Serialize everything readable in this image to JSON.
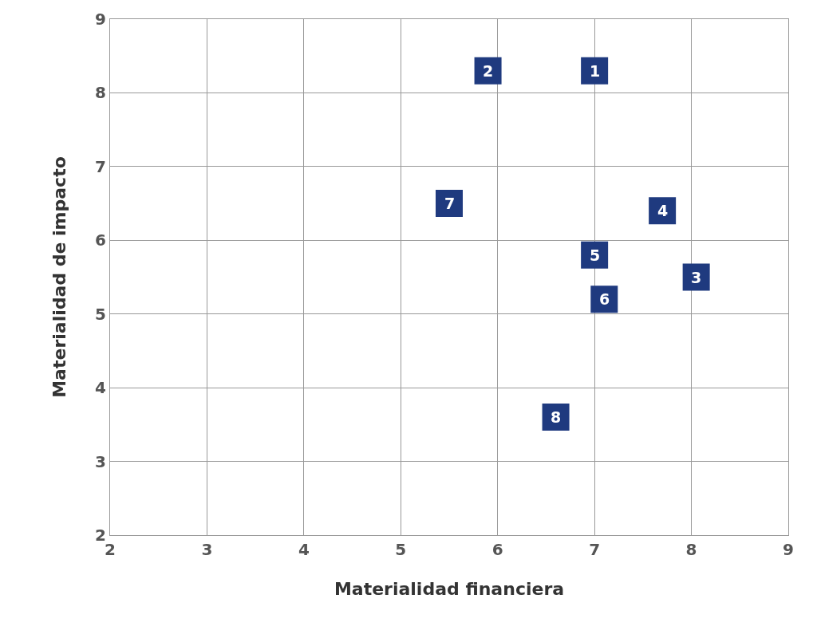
{
  "chart_data": {
    "type": "scatter",
    "xlabel": "Materialidad financiera",
    "ylabel": "Materialidad de impacto",
    "x": [
      7.0,
      5.9,
      8.05,
      7.7,
      7.0,
      7.1,
      5.5,
      6.6
    ],
    "values": [
      8.3,
      8.3,
      5.5,
      6.4,
      5.8,
      5.2,
      6.5,
      3.6
    ],
    "annotations": [
      {
        "text": "1",
        "x": 7.0,
        "y": 8.3
      },
      {
        "text": "2",
        "x": 5.9,
        "y": 8.3
      },
      {
        "text": "3",
        "x": 8.05,
        "y": 5.5
      },
      {
        "text": "4",
        "x": 7.7,
        "y": 6.4
      },
      {
        "text": "5",
        "x": 7.0,
        "y": 5.8
      },
      {
        "text": "6",
        "x": 7.1,
        "y": 5.2
      },
      {
        "text": "7",
        "x": 5.5,
        "y": 6.5
      },
      {
        "text": "8",
        "x": 6.6,
        "y": 3.6
      }
    ],
    "color": "#1f3a7f",
    "marker": "square",
    "xlim": [
      2,
      9
    ],
    "ylim": [
      2,
      9
    ],
    "xticks": [
      2,
      3,
      4,
      5,
      6,
      7,
      8,
      9
    ],
    "yticks": [
      2,
      3,
      4,
      5,
      6,
      7,
      8,
      9
    ],
    "grid": true
  }
}
